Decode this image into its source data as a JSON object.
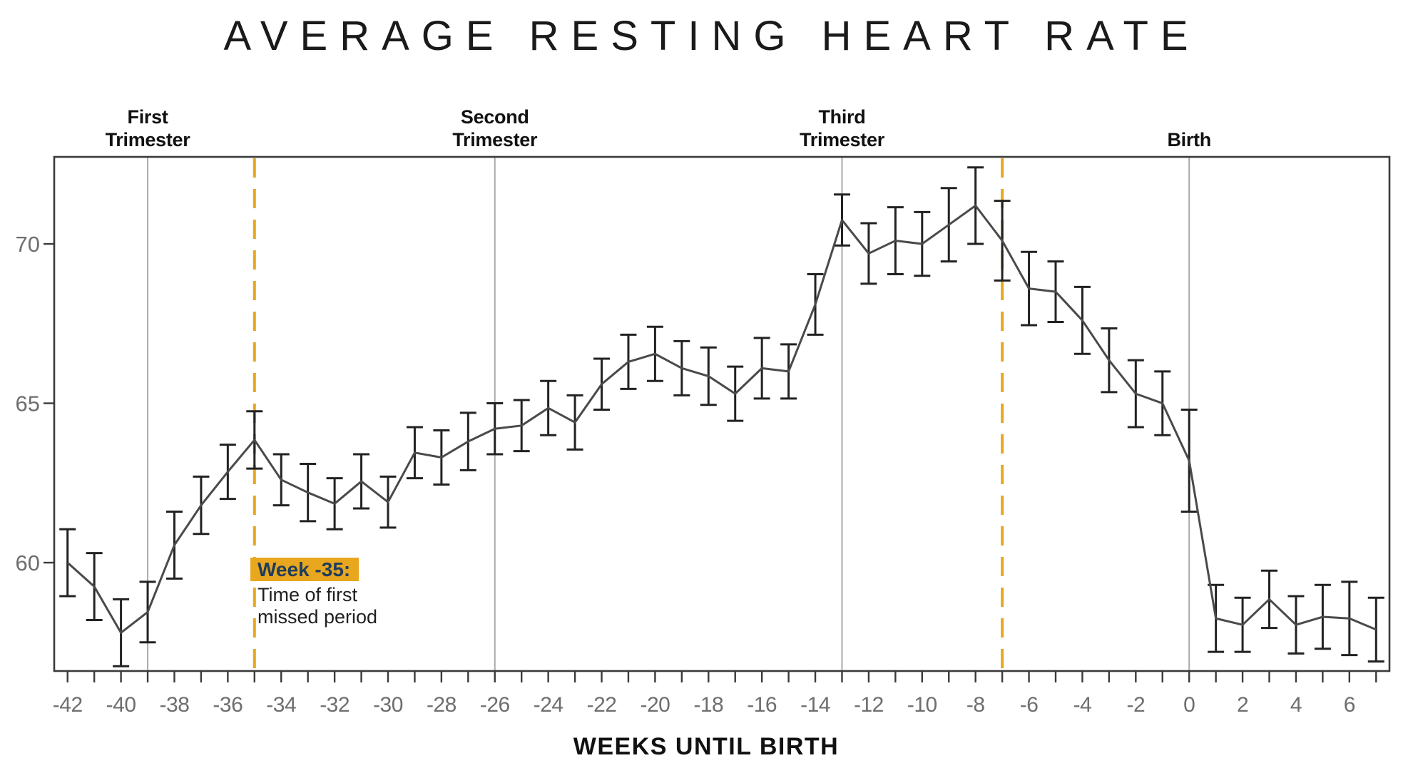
{
  "title": "AVERAGE RESTING HEART RATE",
  "chart_data": {
    "type": "line",
    "title": "AVERAGE RESTING HEART RATE",
    "xlabel": "WEEKS UNTIL BIRTH",
    "ylabel": "",
    "x": [
      -42,
      -41,
      -40,
      -39,
      -38,
      -37,
      -36,
      -35,
      -34,
      -33,
      -32,
      -31,
      -30,
      -29,
      -28,
      -27,
      -26,
      -25,
      -24,
      -23,
      -22,
      -21,
      -20,
      -19,
      -18,
      -17,
      -16,
      -15,
      -14,
      -13,
      -12,
      -11,
      -10,
      -9,
      -8,
      -7,
      -6,
      -5,
      -4,
      -3,
      -2,
      -1,
      0,
      1,
      2,
      3,
      4,
      5,
      6,
      7
    ],
    "series": [
      {
        "name": "Average resting heart rate (bpm)",
        "values": [
          60.0,
          59.25,
          57.8,
          58.45,
          60.55,
          61.8,
          62.85,
          63.85,
          62.6,
          62.2,
          61.85,
          62.55,
          61.9,
          63.45,
          63.3,
          63.8,
          64.2,
          64.3,
          64.85,
          64.4,
          65.6,
          66.3,
          66.55,
          66.1,
          65.85,
          65.3,
          66.1,
          66.0,
          68.1,
          70.75,
          69.7,
          70.1,
          70.0,
          70.6,
          71.2,
          70.1,
          68.6,
          68.5,
          67.6,
          66.35,
          65.3,
          65.0,
          63.2,
          58.25,
          58.05,
          58.85,
          58.05,
          58.3,
          58.25,
          57.9
        ],
        "errors": [
          1.05,
          1.05,
          1.05,
          0.95,
          1.05,
          0.9,
          0.85,
          0.9,
          0.8,
          0.9,
          0.8,
          0.85,
          0.8,
          0.8,
          0.85,
          0.9,
          0.8,
          0.8,
          0.85,
          0.85,
          0.8,
          0.85,
          0.85,
          0.85,
          0.9,
          0.85,
          0.95,
          0.85,
          0.95,
          0.8,
          0.95,
          1.05,
          1.0,
          1.15,
          1.2,
          1.25,
          1.15,
          0.95,
          1.05,
          1.0,
          1.05,
          1.0,
          1.6,
          1.05,
          0.85,
          0.9,
          0.9,
          1.0,
          1.15,
          1.0
        ]
      }
    ],
    "xlim": [
      -42.5,
      7.5
    ],
    "ylim": [
      56.6,
      72.73
    ],
    "y_ticks": [
      60,
      65,
      70
    ],
    "x_tick_labels": [
      -42,
      -40,
      -38,
      -36,
      -34,
      -32,
      -30,
      -28,
      -26,
      -24,
      -22,
      -20,
      -18,
      -16,
      -14,
      -12,
      -10,
      -8,
      -6,
      -4,
      -2,
      0,
      2,
      4,
      6
    ],
    "x_minor_tick_step": 1,
    "grid": false,
    "legend": "none",
    "markers": [
      {
        "week": -39,
        "label_lines": [
          "First",
          "Trimester"
        ],
        "style": "solid"
      },
      {
        "week": -26,
        "label_lines": [
          "Second",
          "Trimester"
        ],
        "style": "solid"
      },
      {
        "week": -13,
        "label_lines": [
          "Third",
          "Trimester"
        ],
        "style": "solid"
      },
      {
        "week": 0,
        "label_lines": [
          "Birth"
        ],
        "style": "solid"
      },
      {
        "week": -35,
        "label_lines": [],
        "style": "dashed"
      },
      {
        "week": -7,
        "label_lines": [],
        "style": "dashed"
      }
    ],
    "annotation": {
      "highlight": "Week -35:",
      "lines": [
        "Time of first",
        "missed period"
      ]
    }
  },
  "colors": {
    "accent_gold": "#E8A71E",
    "navy": "#1E3D5C",
    "series_line": "#4a4a4a",
    "error_bar": "#222222",
    "frame": "#3a3a3a",
    "marker_line_gray": "#ababab",
    "tick_label_gray": "#6e6e6e",
    "background": "#ffffff"
  }
}
